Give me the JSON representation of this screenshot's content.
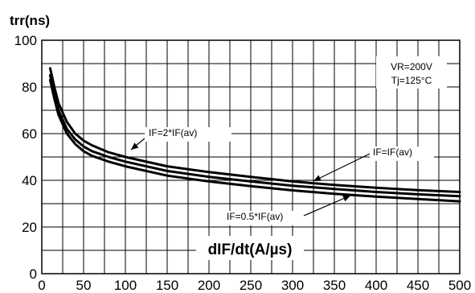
{
  "chart_data": {
    "type": "line",
    "ylabel": "trr(ns)",
    "xlabel": "dIF/dt(A/µs)",
    "xlim": [
      0,
      500
    ],
    "ylim": [
      0,
      100
    ],
    "x_ticks": [
      "0",
      "50",
      "100",
      "150",
      "200",
      "250",
      "300",
      "350",
      "400",
      "450",
      "500"
    ],
    "y_ticks": [
      "0",
      "20",
      "40",
      "60",
      "80",
      "100"
    ],
    "grid": true,
    "conditions": [
      "VR=200V",
      "Tj=125°C"
    ],
    "series": [
      {
        "name": "IF=2*IF(av)",
        "x": [
          10,
          15,
          20,
          30,
          40,
          50,
          60,
          80,
          100,
          150,
          200,
          250,
          300,
          350,
          400,
          450,
          500
        ],
        "y": [
          88,
          80,
          73,
          65,
          60,
          57,
          55,
          52,
          50,
          46,
          43.5,
          41.5,
          39.5,
          38,
          36.8,
          35.8,
          35
        ]
      },
      {
        "name": "IF=IF(av)",
        "x": [
          10,
          15,
          20,
          30,
          40,
          50,
          60,
          80,
          100,
          150,
          200,
          250,
          300,
          350,
          400,
          450,
          500
        ],
        "y": [
          85,
          77,
          70,
          62,
          57.5,
          54.5,
          52.5,
          50,
          48,
          44,
          41.5,
          39.5,
          37.7,
          36.3,
          35,
          34,
          33.2
        ]
      },
      {
        "name": "IF=0.5*IF(av)",
        "x": [
          10,
          15,
          20,
          30,
          40,
          50,
          60,
          80,
          100,
          150,
          200,
          250,
          300,
          350,
          400,
          450,
          500
        ],
        "y": [
          83,
          75,
          68,
          60,
          55.5,
          52.5,
          50.5,
          48,
          46,
          42,
          39.5,
          37.5,
          35.7,
          34.2,
          33,
          32,
          31
        ]
      }
    ]
  }
}
